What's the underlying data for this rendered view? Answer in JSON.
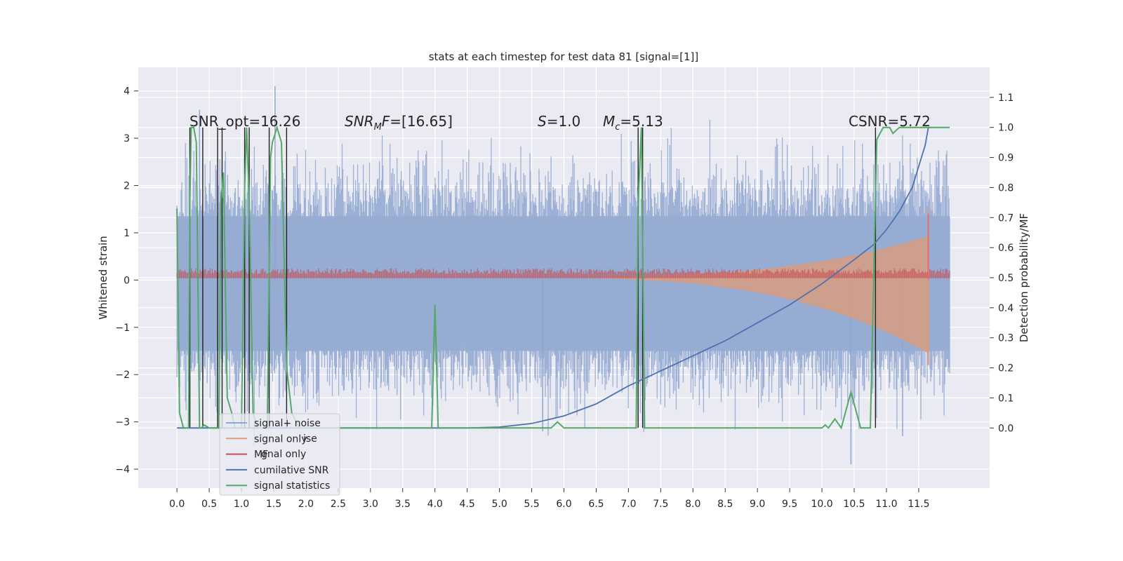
{
  "chart_data": {
    "type": "line",
    "title": "stats at each timestep for test data 81 [signal=[1]]",
    "ylabel_left": "Whitened strain",
    "ylabel_right": "Detection probability/MF",
    "xlim": [
      -0.6,
      12.6
    ],
    "ylim_left": [
      -4.4,
      4.5
    ],
    "ylim_right": [
      -0.2,
      1.2
    ],
    "x_ticks": [
      "0.0",
      "0.5",
      "1.0",
      "1.5",
      "2.0",
      "2.5",
      "3.0",
      "3.5",
      "4.0",
      "4.5",
      "5.0",
      "5.5",
      "6.0",
      "6.5",
      "7.0",
      "7.5",
      "8.0",
      "8.5",
      "9.0",
      "9.5",
      "10.0",
      "10.5",
      "11.0",
      "11.5"
    ],
    "y_ticks_left": [
      "4",
      "3",
      "2",
      "1",
      "0",
      "−1",
      "−2",
      "−3",
      "−4"
    ],
    "y_ticks_right": [
      "1.1",
      "1.0",
      "0.9",
      "0.8",
      "0.7",
      "0.6",
      "0.5",
      "0.4",
      "0.3",
      "0.2",
      "0.1",
      "0.0"
    ],
    "annotations": [
      {
        "id": "snr-opt",
        "text": "SNR_opt=16.26"
      },
      {
        "id": "snr-mf",
        "text": "SNR_MF=[16.65]"
      },
      {
        "id": "s-val",
        "text": "S=1.0"
      },
      {
        "id": "mc-val",
        "text": "M_c=5.13"
      },
      {
        "id": "csnr",
        "text": "CSNR=5.72"
      }
    ],
    "legend": {
      "placement": "lower-left",
      "entries": [
        {
          "label": "signal+ noise",
          "color": "#8fa6d0"
        },
        {
          "label": "signal only",
          "color": "#dd9c7c"
        },
        {
          "label": "MF",
          "color": "#c44e52"
        },
        {
          "label": "cumilative SNR",
          "color": "#4c72b0"
        },
        {
          "label": "signal statistics",
          "color": "#55a868"
        }
      ],
      "ghost_entries": [
        {
          "label": "ise"
        },
        {
          "label": "gnal only"
        }
      ]
    },
    "series": [
      {
        "name": "signal+ noise",
        "axis": "left",
        "approx_envelope": {
          "x_start": 0.0,
          "x_end": 11.98,
          "amplitude_typical": 2.0,
          "max": 4.1,
          "min": -3.9
        }
      },
      {
        "name": "signal only",
        "axis": "left",
        "approx_chirp": {
          "x_start": 5.0,
          "x_end": 11.65,
          "amp_start": 0.0,
          "amp_end": 1.6,
          "merger_x": 11.65
        }
      },
      {
        "name": "MF",
        "axis": "left",
        "baseline": 0.08,
        "spike_x": 11.65,
        "spike_y": 1.4
      },
      {
        "name": "cumilative SNR",
        "axis": "right",
        "x": [
          0.0,
          4.5,
          5.0,
          5.5,
          6.0,
          6.5,
          7.0,
          7.5,
          8.0,
          8.5,
          9.0,
          9.5,
          10.0,
          10.5,
          10.8,
          11.0,
          11.2,
          11.4,
          11.5,
          11.6,
          11.65
        ],
        "y": [
          0.0,
          0.0,
          0.003,
          0.015,
          0.04,
          0.08,
          0.14,
          0.19,
          0.24,
          0.29,
          0.35,
          0.41,
          0.48,
          0.56,
          0.61,
          0.66,
          0.72,
          0.8,
          0.87,
          0.94,
          1.0
        ]
      },
      {
        "name": "signal statistics",
        "axis": "right",
        "x": [
          0.0,
          0.04,
          0.1,
          0.18,
          0.2,
          0.22,
          0.26,
          0.3,
          0.35,
          0.38,
          0.42,
          0.5,
          0.6,
          0.65,
          0.68,
          0.72,
          0.78,
          0.85,
          0.9,
          1.0,
          1.05,
          1.08,
          1.12,
          1.18,
          1.25,
          1.4,
          1.45,
          1.48,
          1.55,
          1.62,
          1.7,
          1.78,
          1.9,
          2.5,
          3.0,
          3.5,
          3.95,
          4.0,
          4.05,
          4.1,
          4.5,
          5.0,
          5.8,
          5.9,
          6.0,
          6.5,
          7.0,
          7.12,
          7.15,
          7.2,
          7.25,
          7.3,
          8.0,
          9.0,
          10.0,
          10.05,
          10.1,
          10.2,
          10.3,
          10.45,
          10.6,
          10.75,
          10.85,
          10.95,
          11.05,
          11.1,
          11.2,
          11.25,
          11.3,
          11.5,
          11.65,
          11.98
        ],
        "y": [
          0.73,
          0.05,
          0.0,
          0.0,
          0.75,
          1.0,
          1.0,
          0.95,
          0.0,
          0.0,
          0.01,
          0.0,
          0.0,
          0.0,
          0.75,
          0.85,
          0.1,
          0.05,
          0.0,
          0.0,
          0.8,
          1.0,
          0.75,
          0.05,
          0.0,
          0.0,
          0.9,
          0.95,
          1.0,
          0.95,
          0.2,
          0.05,
          0.0,
          0.0,
          0.0,
          0.0,
          0.0,
          0.41,
          0.0,
          0.0,
          0.0,
          0.0,
          0.0,
          0.02,
          0.0,
          0.0,
          0.0,
          0.0,
          0.75,
          1.0,
          0.0,
          0.0,
          0.0,
          0.0,
          0.0,
          0.01,
          0.0,
          0.03,
          0.0,
          0.12,
          0.0,
          0.0,
          0.96,
          1.0,
          1.0,
          0.98,
          1.0,
          1.0,
          1.0,
          1.0,
          1.0,
          1.0
        ]
      }
    ],
    "vertical_markers_x": [
      0.2,
      0.4,
      0.63,
      0.7,
      1.05,
      1.12,
      1.43,
      1.7,
      7.15,
      7.22,
      10.83
    ]
  }
}
